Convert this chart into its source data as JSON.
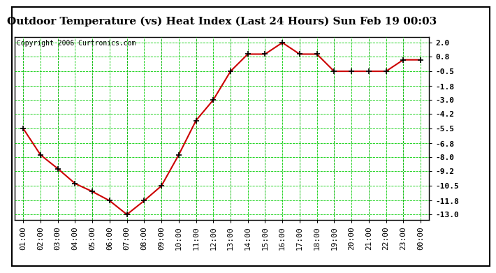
{
  "title": "Outdoor Temperature (vs) Heat Index (Last 24 Hours) Sun Feb 19 00:03",
  "copyright": "Copyright 2006 Curtronics.com",
  "x_labels": [
    "01:00",
    "02:00",
    "03:00",
    "04:00",
    "05:00",
    "06:00",
    "07:00",
    "08:00",
    "09:00",
    "10:00",
    "11:00",
    "12:00",
    "13:00",
    "14:00",
    "15:00",
    "16:00",
    "17:00",
    "18:00",
    "19:00",
    "20:00",
    "21:00",
    "22:00",
    "23:00",
    "00:00"
  ],
  "y_values": [
    -5.5,
    -7.8,
    -9.0,
    -10.3,
    -11.0,
    -11.8,
    -13.0,
    -11.8,
    -10.5,
    -7.8,
    -4.8,
    -3.0,
    -0.5,
    1.0,
    1.0,
    2.0,
    1.0,
    1.0,
    -0.5,
    -0.5,
    -0.5,
    -0.5,
    0.5,
    0.5
  ],
  "y_ticks": [
    2.0,
    0.8,
    -0.5,
    -1.8,
    -3.0,
    -4.2,
    -5.5,
    -6.8,
    -8.0,
    -9.2,
    -10.5,
    -11.8,
    -13.0
  ],
  "ylim": [
    -13.5,
    2.5
  ],
  "xlim": [
    -0.5,
    23.5
  ],
  "background_color": "#ffffff",
  "plot_bg_color": "#ffffff",
  "line_color": "#cc0000",
  "marker_color": "#000000",
  "grid_color": "#00cc00",
  "title_fontsize": 11,
  "tick_fontsize": 8,
  "copyright_fontsize": 7
}
